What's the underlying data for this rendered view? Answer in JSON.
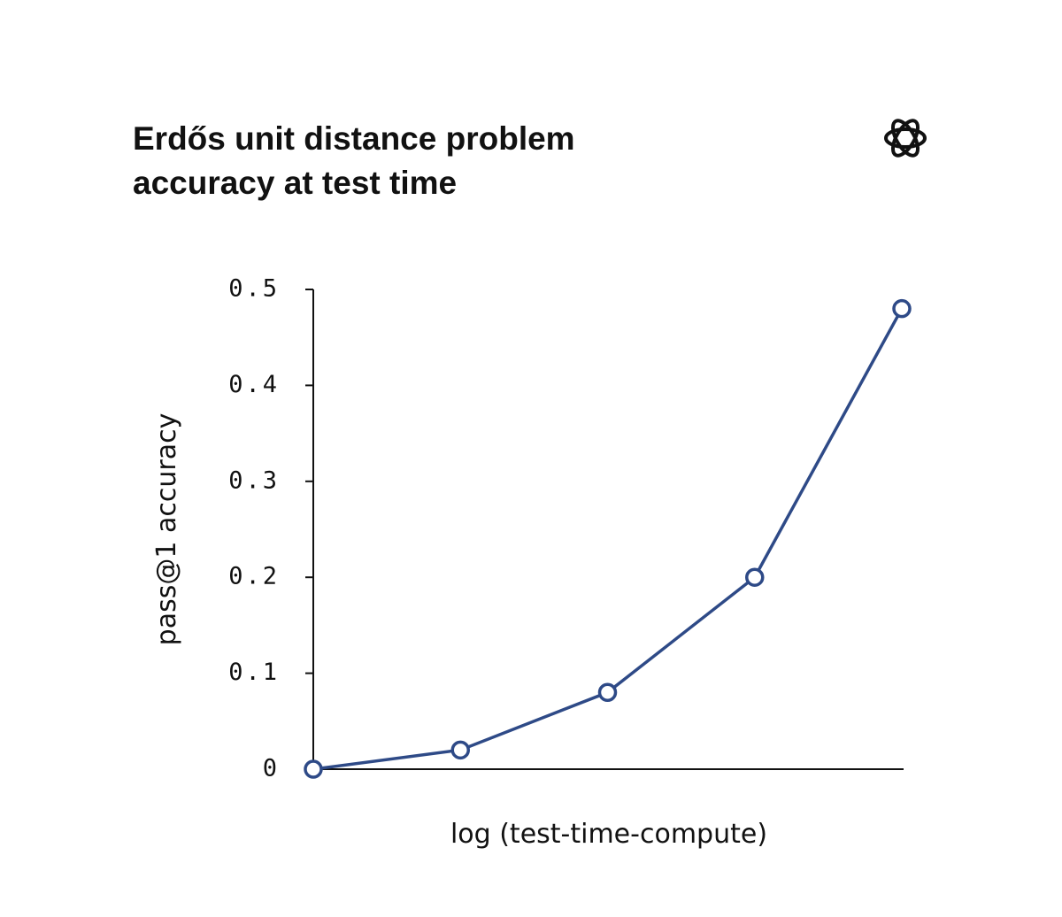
{
  "chart_data": {
    "type": "line",
    "title": [
      "Erdős unit distance problem",
      "accuracy at test time"
    ],
    "xlabel": "log (test-time-compute)",
    "ylabel": "pass@1 accuracy",
    "categories": [
      null,
      null,
      null,
      null,
      null
    ],
    "series": [
      {
        "name": null,
        "color": "#2e4a87",
        "values": [
          0,
          0.02,
          0.08,
          0.2,
          0.48
        ]
      }
    ],
    "ylim": [
      0,
      0.5
    ],
    "yticks": [
      0,
      0.1,
      0.2,
      0.3,
      0.4,
      0.5
    ]
  }
}
